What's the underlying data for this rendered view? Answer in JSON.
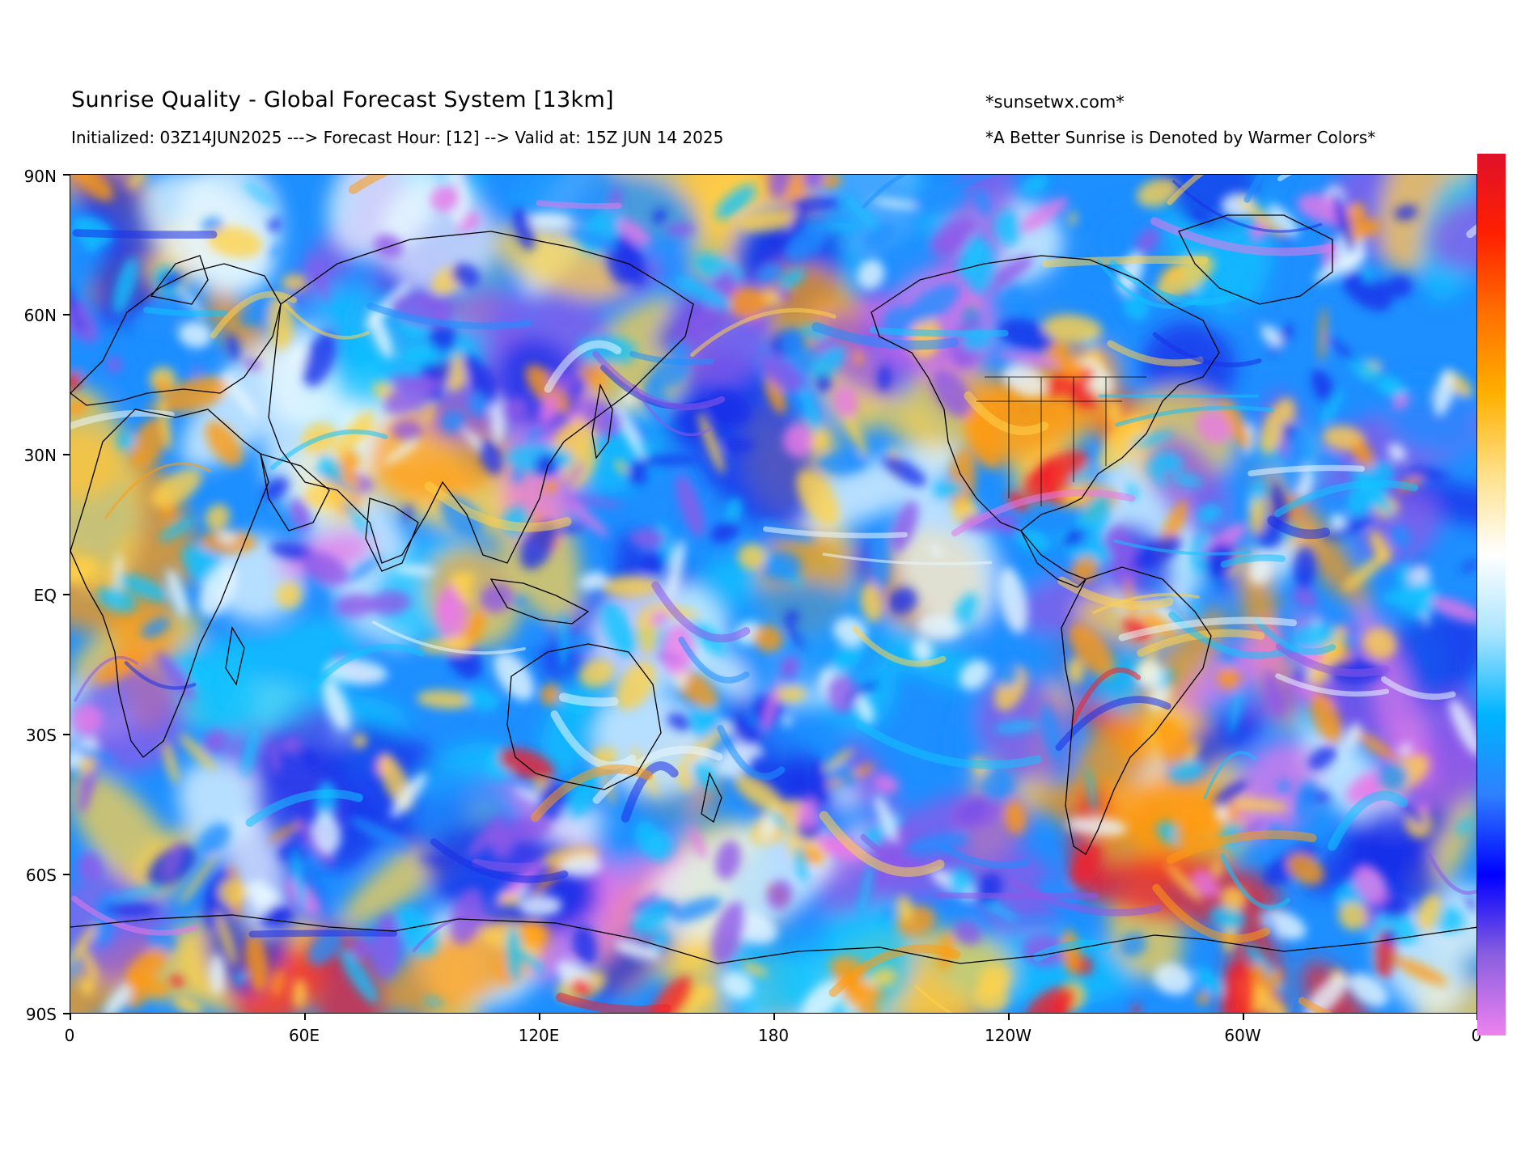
{
  "header": {
    "title": "Sunrise Quality - Global Forecast System [13km]",
    "subtitle": "Initialized: 03Z14JUN2025 ---> Forecast Hour: [12] --> Valid at: 15Z JUN 14 2025",
    "site": "*sunsetwx.com*",
    "note": "*A Better Sunrise is Denoted by Warmer Colors*"
  },
  "map": {
    "projection": "equirectangular",
    "lon_range": [
      0,
      360
    ],
    "lat_range": [
      -90,
      90
    ],
    "y_ticks": [
      "90N",
      "60N",
      "30N",
      "EQ",
      "30S",
      "60S",
      "90S"
    ],
    "x_ticks": [
      "0",
      "60E",
      "120E",
      "180",
      "120W",
      "60W",
      "0"
    ],
    "features": [
      "swirling sunrise-quality field",
      "black coastlines and country borders",
      "US state borders"
    ]
  },
  "colorbar": {
    "orientation": "vertical",
    "scale_meaning": "warmer colors = better sunrise",
    "colors": [
      "#ee82ee",
      "#8a5fe0",
      "#0000ff",
      "#2f7fff",
      "#00b4ff",
      "#a8e4ff",
      "#ffffff",
      "#ffe08a",
      "#ffb000",
      "#ff7000",
      "#ff2000",
      "#e0102a"
    ]
  },
  "colors": {
    "ocean_base": "#1e8fff",
    "deep_blue": "#1a2fe8",
    "violet": "#8e58e8",
    "pink": "#e878e8",
    "cyan": "#13c3ff",
    "light": "#e8f8ff",
    "yellow": "#ffd24a",
    "orange": "#ff9a10",
    "red": "#f0202a",
    "coastline": "#000000"
  }
}
